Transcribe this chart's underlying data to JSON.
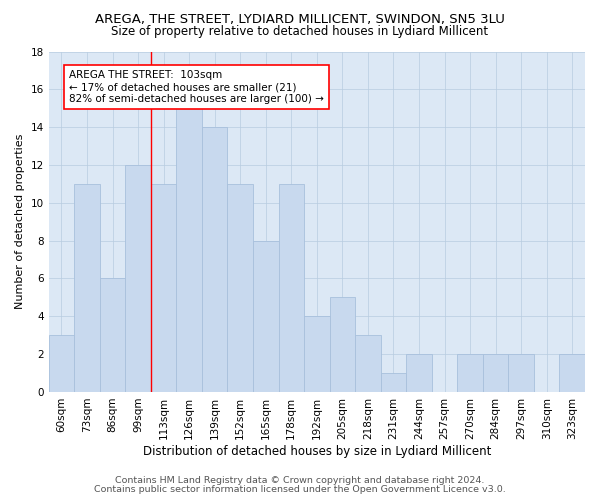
{
  "title": "AREGA, THE STREET, LYDIARD MILLICENT, SWINDON, SN5 3LU",
  "subtitle": "Size of property relative to detached houses in Lydiard Millicent",
  "xlabel": "Distribution of detached houses by size in Lydiard Millicent",
  "ylabel": "Number of detached properties",
  "footer1": "Contains HM Land Registry data © Crown copyright and database right 2024.",
  "footer2": "Contains public sector information licensed under the Open Government Licence v3.0.",
  "annotation_title": "AREGA THE STREET:  103sqm",
  "annotation_line1": "← 17% of detached houses are smaller (21)",
  "annotation_line2": "82% of semi-detached houses are larger (100) →",
  "categories": [
    "60sqm",
    "73sqm",
    "86sqm",
    "99sqm",
    "113sqm",
    "126sqm",
    "139sqm",
    "152sqm",
    "165sqm",
    "178sqm",
    "192sqm",
    "205sqm",
    "218sqm",
    "231sqm",
    "244sqm",
    "257sqm",
    "270sqm",
    "284sqm",
    "297sqm",
    "310sqm",
    "323sqm"
  ],
  "values": [
    3,
    11,
    6,
    12,
    11,
    15,
    14,
    11,
    8,
    11,
    4,
    5,
    3,
    1,
    2,
    0,
    2,
    2,
    2,
    0,
    2
  ],
  "bar_color": "#c8d9ee",
  "bar_edge_color": "#a8c0dc",
  "red_line_x": 3.5,
  "ylim": [
    0,
    18
  ],
  "yticks": [
    0,
    2,
    4,
    6,
    8,
    10,
    12,
    14,
    16,
    18
  ],
  "background_color": "#ffffff",
  "plot_bg_color": "#dce8f5",
  "grid_color": "#b8cce0",
  "title_fontsize": 9.5,
  "subtitle_fontsize": 8.5,
  "xlabel_fontsize": 8.5,
  "ylabel_fontsize": 8,
  "tick_fontsize": 7.5,
  "annotation_fontsize": 7.5,
  "footer_fontsize": 6.8
}
